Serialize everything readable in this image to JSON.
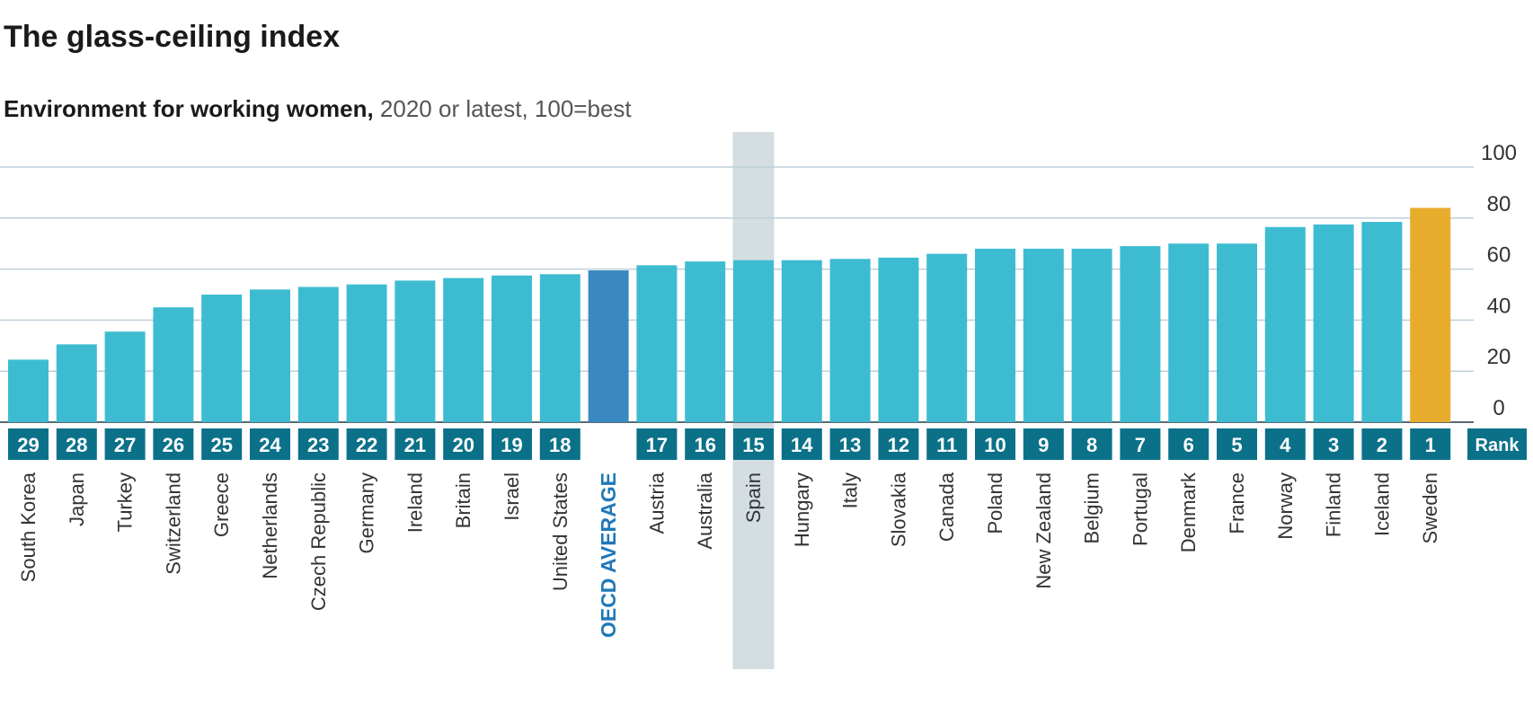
{
  "header": {
    "title": "The glass-ceiling index",
    "subtitle_bold": "Environment for working women,",
    "subtitle_rest": " 2020 or latest, 100=best"
  },
  "colors": {
    "bar": "#3dbcd1",
    "oecd_bar": "#3a88c2",
    "top_bar": "#e8ac2d",
    "rank_box": "#0b7189",
    "highlight": "#d3dde2",
    "grid": "#bfcfd8",
    "oecd_label": "#1f78b8"
  },
  "chart_data": {
    "type": "bar",
    "title": "The glass-ceiling index",
    "subtitle": "Environment for working women, 2020 or latest, 100=best",
    "ylim": [
      0,
      100
    ],
    "yticks": [
      0,
      20,
      40,
      60,
      80,
      100
    ],
    "grid": true,
    "rank_label": "Rank",
    "highlighted_category": "Spain",
    "categories": [
      "South Korea",
      "Japan",
      "Turkey",
      "Switzerland",
      "Greece",
      "Netherlands",
      "Czech Republic",
      "Germany",
      "Ireland",
      "Britain",
      "Israel",
      "United States",
      "OECD AVERAGE",
      "Austria",
      "Australia",
      "Spain",
      "Hungary",
      "Italy",
      "Slovakia",
      "Canada",
      "Poland",
      "New Zealand",
      "Belgium",
      "Portugal",
      "Denmark",
      "France",
      "Norway",
      "Finland",
      "Iceland",
      "Sweden"
    ],
    "ranks": [
      "29",
      "28",
      "27",
      "26",
      "25",
      "24",
      "23",
      "22",
      "21",
      "20",
      "19",
      "18",
      "",
      "17",
      "16",
      "15",
      "14",
      "13",
      "12",
      "11",
      "10",
      "9",
      "8",
      "7",
      "6",
      "5",
      "4",
      "3",
      "2",
      "1"
    ],
    "values": [
      24.5,
      30.5,
      35.5,
      45,
      50,
      52,
      53,
      54,
      55.5,
      56.5,
      57.5,
      58,
      59.5,
      61.5,
      63,
      63.5,
      63.5,
      64,
      64.5,
      66,
      68,
      68,
      68,
      69,
      70,
      70,
      76.5,
      77.5,
      78.5,
      84
    ]
  }
}
